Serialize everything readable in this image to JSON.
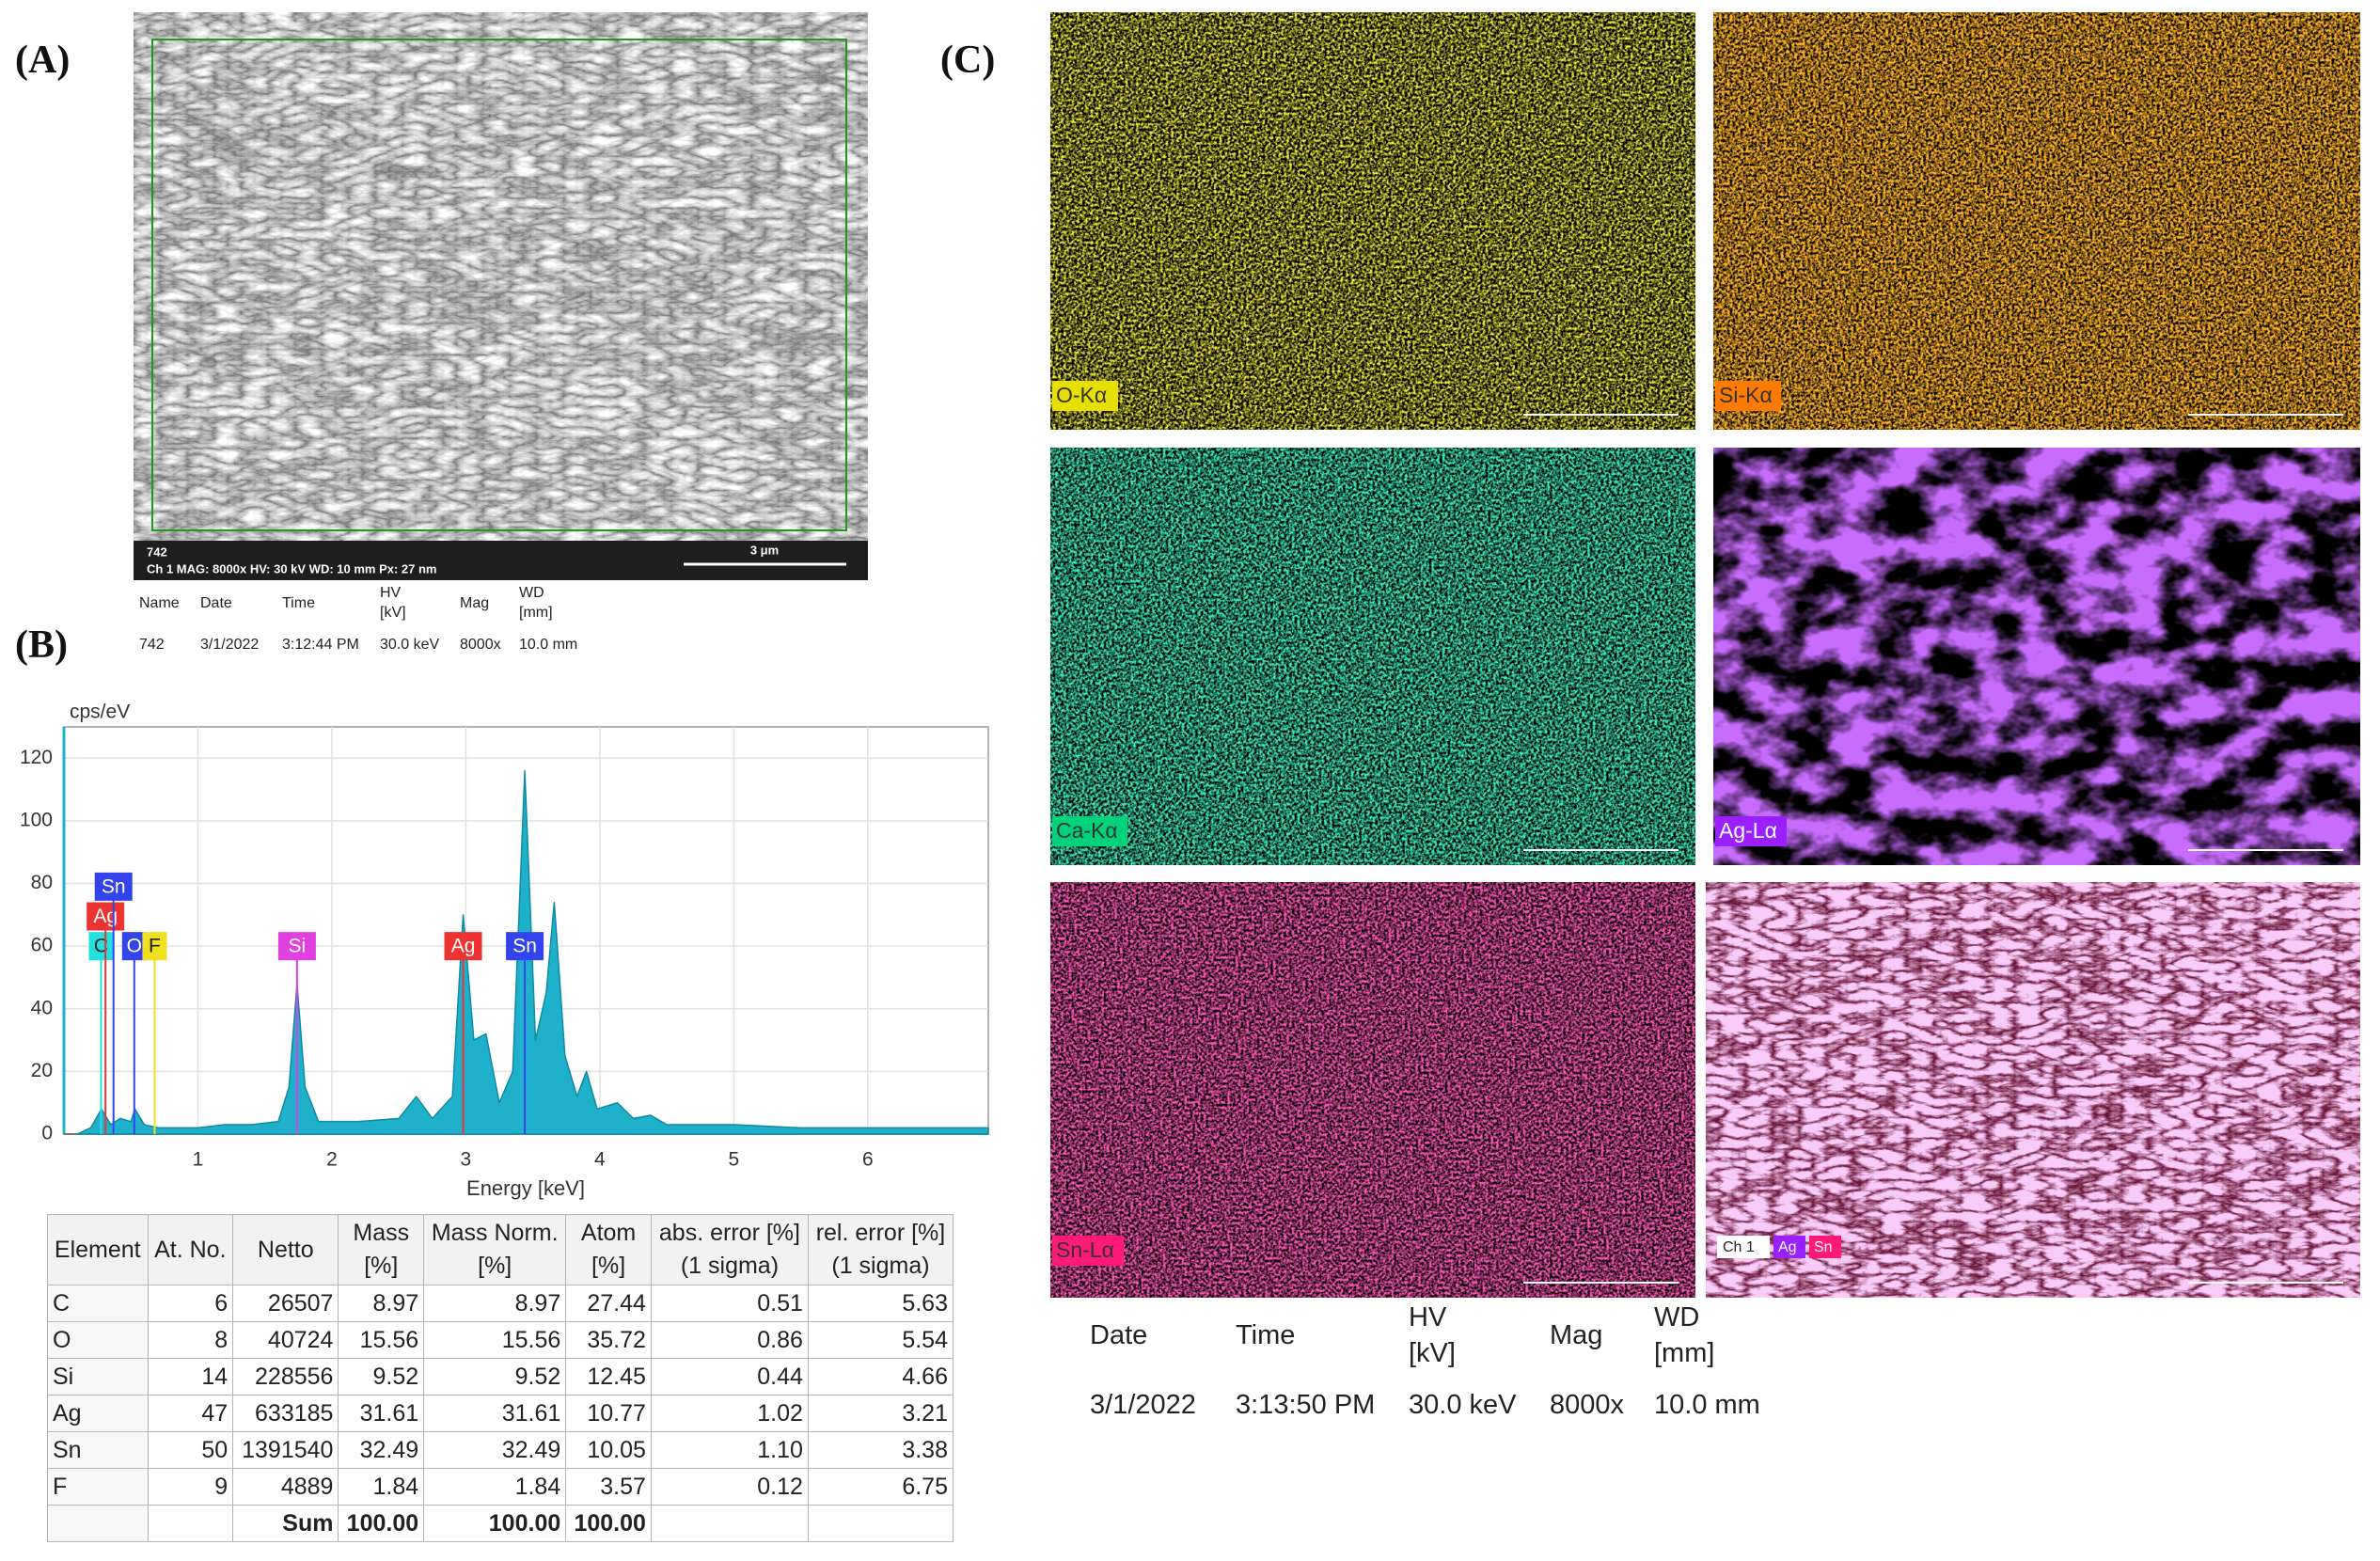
{
  "panel_labels": [
    "(A)",
    "(B)",
    "(C)"
  ],
  "sem_image": {
    "id": "742",
    "info": "Ch 1   MAG: 8000x   HV: 30 kV   WD: 10 mm   Px: 27 nm",
    "scale_bar": "3 μm"
  },
  "sem_metadata": {
    "headers": [
      "Name",
      "Date",
      "Time",
      "HV\n[kV]",
      "Mag",
      "WD\n[mm]"
    ],
    "values": [
      "742",
      "3/1/2022",
      "3:12:44 PM",
      "30.0 keV",
      "8000x",
      "10.0 mm"
    ]
  },
  "chart_data": {
    "type": "area",
    "y_label": "cps/eV",
    "x_label": "Energy [keV]",
    "x": [
      0.1,
      0.2,
      0.28,
      0.35,
      0.42,
      0.5,
      0.53,
      0.6,
      0.7,
      0.8,
      1.0,
      1.2,
      1.4,
      1.6,
      1.68,
      1.74,
      1.8,
      1.9,
      2.2,
      2.5,
      2.63,
      2.75,
      2.9,
      2.98,
      3.06,
      3.15,
      3.25,
      3.35,
      3.44,
      3.52,
      3.6,
      3.66,
      3.74,
      3.83,
      3.9,
      3.98,
      4.13,
      4.25,
      4.38,
      4.5,
      5.0,
      5.5,
      6.0,
      6.5,
      6.9
    ],
    "series": [
      {
        "name": "spectrum",
        "color": "#1fb0cc",
        "values": [
          0,
          2,
          8,
          3,
          5,
          4,
          8,
          3,
          2,
          2,
          2,
          3,
          3,
          4,
          15,
          48,
          15,
          4,
          4,
          5,
          12,
          5,
          12,
          70,
          30,
          32,
          10,
          20,
          116,
          30,
          45,
          74,
          25,
          12,
          20,
          8,
          10,
          5,
          6,
          3,
          3,
          2,
          2,
          2,
          2
        ]
      }
    ],
    "annotations": [
      {
        "text": "C",
        "x": 0.277,
        "color": "#22e0e0"
      },
      {
        "text": "Ag",
        "x": 0.31,
        "color": "#ee3333"
      },
      {
        "text": "Sn",
        "x": 0.37,
        "color": "#3344ee"
      },
      {
        "text": "O",
        "x": 0.525,
        "color": "#3344ee"
      },
      {
        "text": "F",
        "x": 0.677,
        "color": "#f0e020"
      },
      {
        "text": "Si",
        "x": 1.74,
        "color": "#e040e0"
      },
      {
        "text": "Ag",
        "x": 2.98,
        "color": "#ee3333"
      },
      {
        "text": "Sn",
        "x": 3.44,
        "color": "#3344ee"
      }
    ],
    "xlim": [
      0,
      6.9
    ],
    "ylim": [
      0,
      130
    ],
    "xticks": [
      1,
      2,
      3,
      4,
      5,
      6
    ],
    "yticks": [
      0,
      20,
      40,
      60,
      80,
      100,
      120
    ],
    "grid": true
  },
  "table": {
    "headers": [
      "Element",
      "At. No.",
      "Netto",
      "Mass\n[%]",
      "Mass Norm.\n[%]",
      "Atom\n[%]",
      "abs. error [%]\n(1 sigma)",
      "rel. error [%]\n(1 sigma)"
    ],
    "rows": [
      [
        "C",
        "6",
        "26507",
        "8.97",
        "8.97",
        "27.44",
        "0.51",
        "5.63"
      ],
      [
        "O",
        "8",
        "40724",
        "15.56",
        "15.56",
        "35.72",
        "0.86",
        "5.54"
      ],
      [
        "Si",
        "14",
        "228556",
        "9.52",
        "9.52",
        "12.45",
        "0.44",
        "4.66"
      ],
      [
        "Ag",
        "47",
        "633185",
        "31.61",
        "31.61",
        "10.77",
        "1.02",
        "3.21"
      ],
      [
        "Sn",
        "50",
        "1391540",
        "32.49",
        "32.49",
        "10.05",
        "1.10",
        "3.38"
      ],
      [
        "F",
        "9",
        "4889",
        "1.84",
        "1.84",
        "3.57",
        "0.12",
        "6.75"
      ]
    ],
    "sum": {
      "label": "Sum",
      "values": [
        "100.00",
        "100.00",
        "100.00"
      ]
    }
  },
  "maps": {
    "labels": [
      "O-Kα",
      "Si-Kα",
      "Ca-Kα",
      "Ag-Lα",
      "Sn-Lα"
    ],
    "overlay_legend": [
      "Ch 1",
      "Ag",
      "Sn"
    ]
  },
  "map_metadata": {
    "headers": [
      "Date",
      "Time",
      "HV\n[kV]",
      "Mag",
      "WD\n[mm]"
    ],
    "values": [
      "3/1/2022",
      "3:13:50 PM",
      "30.0 keV",
      "8000x",
      "10.0 mm"
    ]
  }
}
